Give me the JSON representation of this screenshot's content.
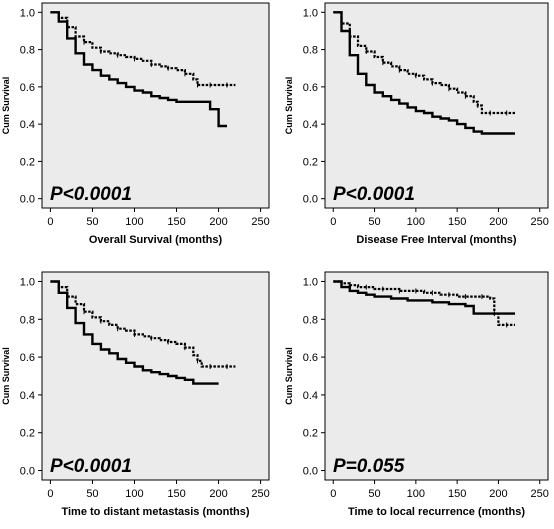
{
  "chart_data": [
    {
      "type": "line",
      "title": "",
      "xlabel": "Overall Survival (months)",
      "ylabel": "Cum Survival",
      "xlim": [
        -10,
        260
      ],
      "ylim": [
        -0.05,
        1.05
      ],
      "x_ticks": [
        0,
        50,
        100,
        150,
        200,
        250
      ],
      "y_ticks": [
        0.0,
        0.2,
        0.4,
        0.6,
        0.8,
        1.0
      ],
      "annotation": "P<0.0001",
      "series": [
        {
          "style": "dashed",
          "x": [
            0,
            10,
            20,
            30,
            40,
            50,
            60,
            70,
            80,
            90,
            100,
            110,
            120,
            130,
            140,
            150,
            160,
            170,
            175,
            180,
            190,
            200,
            210,
            220
          ],
          "y": [
            1.0,
            0.97,
            0.92,
            0.87,
            0.84,
            0.81,
            0.79,
            0.78,
            0.77,
            0.76,
            0.75,
            0.74,
            0.72,
            0.71,
            0.7,
            0.69,
            0.67,
            0.64,
            0.61,
            0.61,
            0.61,
            0.61,
            0.61,
            0.61
          ]
        },
        {
          "style": "solid",
          "x": [
            0,
            10,
            20,
            30,
            40,
            50,
            60,
            70,
            80,
            90,
            100,
            110,
            120,
            130,
            140,
            150,
            160,
            170,
            180,
            190,
            200,
            210
          ],
          "y": [
            1.0,
            0.95,
            0.86,
            0.78,
            0.72,
            0.69,
            0.66,
            0.64,
            0.62,
            0.6,
            0.58,
            0.57,
            0.55,
            0.54,
            0.53,
            0.52,
            0.52,
            0.52,
            0.52,
            0.48,
            0.39,
            0.39
          ]
        }
      ]
    },
    {
      "type": "line",
      "title": "",
      "xlabel": "Disease Free Interval (months)",
      "ylabel": "Cum Survival",
      "xlim": [
        -10,
        260
      ],
      "ylim": [
        -0.05,
        1.05
      ],
      "x_ticks": [
        0,
        50,
        100,
        150,
        200,
        250
      ],
      "y_ticks": [
        0.0,
        0.2,
        0.4,
        0.6,
        0.8,
        1.0
      ],
      "annotation": "P<0.0001",
      "series": [
        {
          "style": "dashed",
          "x": [
            0,
            10,
            20,
            30,
            40,
            50,
            60,
            70,
            80,
            90,
            100,
            110,
            120,
            130,
            140,
            150,
            160,
            170,
            175,
            180,
            190,
            200,
            210,
            220
          ],
          "y": [
            1.0,
            0.94,
            0.87,
            0.82,
            0.79,
            0.76,
            0.73,
            0.71,
            0.69,
            0.67,
            0.66,
            0.64,
            0.62,
            0.61,
            0.59,
            0.57,
            0.55,
            0.52,
            0.5,
            0.46,
            0.46,
            0.46,
            0.46,
            0.46
          ]
        },
        {
          "style": "solid",
          "x": [
            0,
            10,
            20,
            30,
            40,
            50,
            60,
            70,
            80,
            90,
            100,
            110,
            120,
            130,
            140,
            150,
            160,
            170,
            180,
            190,
            200,
            210,
            220
          ],
          "y": [
            1.0,
            0.9,
            0.77,
            0.67,
            0.61,
            0.57,
            0.55,
            0.53,
            0.51,
            0.49,
            0.47,
            0.46,
            0.44,
            0.43,
            0.42,
            0.4,
            0.38,
            0.36,
            0.35,
            0.35,
            0.35,
            0.35,
            0.35
          ]
        }
      ]
    },
    {
      "type": "line",
      "title": "",
      "xlabel": "Time to distant metastasis (months)",
      "ylabel": "Cum Survival",
      "xlim": [
        -10,
        260
      ],
      "ylim": [
        -0.05,
        1.05
      ],
      "x_ticks": [
        0,
        50,
        100,
        150,
        200,
        250
      ],
      "y_ticks": [
        0.0,
        0.2,
        0.4,
        0.6,
        0.8,
        1.0
      ],
      "annotation": "P<0.0001",
      "series": [
        {
          "style": "dashed",
          "x": [
            0,
            10,
            20,
            30,
            40,
            50,
            60,
            70,
            80,
            90,
            100,
            110,
            120,
            130,
            140,
            150,
            160,
            170,
            175,
            180,
            190,
            200,
            210,
            220
          ],
          "y": [
            1.0,
            0.97,
            0.92,
            0.88,
            0.84,
            0.81,
            0.79,
            0.77,
            0.75,
            0.74,
            0.72,
            0.71,
            0.7,
            0.69,
            0.68,
            0.67,
            0.65,
            0.61,
            0.58,
            0.55,
            0.55,
            0.55,
            0.55,
            0.55
          ]
        },
        {
          "style": "solid",
          "x": [
            0,
            10,
            20,
            30,
            40,
            50,
            60,
            70,
            80,
            90,
            100,
            110,
            120,
            130,
            140,
            150,
            160,
            170,
            180,
            190,
            200
          ],
          "y": [
            1.0,
            0.94,
            0.86,
            0.78,
            0.72,
            0.67,
            0.64,
            0.62,
            0.59,
            0.57,
            0.55,
            0.53,
            0.52,
            0.51,
            0.5,
            0.49,
            0.48,
            0.46,
            0.46,
            0.46,
            0.46
          ]
        }
      ]
    },
    {
      "type": "line",
      "title": "",
      "xlabel": "Time to local recurrence (months)",
      "ylabel": "Cum Survival",
      "xlim": [
        -10,
        260
      ],
      "ylim": [
        -0.05,
        1.05
      ],
      "x_ticks": [
        0,
        50,
        100,
        150,
        200,
        250
      ],
      "y_ticks": [
        0.0,
        0.2,
        0.4,
        0.6,
        0.8,
        1.0
      ],
      "annotation": "P=0.055",
      "series": [
        {
          "style": "dashed",
          "x": [
            0,
            10,
            20,
            30,
            40,
            50,
            60,
            70,
            80,
            90,
            100,
            110,
            120,
            130,
            140,
            150,
            160,
            170,
            180,
            190,
            195,
            200,
            210,
            220
          ],
          "y": [
            1.0,
            0.99,
            0.98,
            0.97,
            0.97,
            0.96,
            0.96,
            0.96,
            0.95,
            0.95,
            0.95,
            0.94,
            0.94,
            0.93,
            0.93,
            0.92,
            0.92,
            0.92,
            0.92,
            0.91,
            0.83,
            0.77,
            0.77,
            0.77
          ]
        },
        {
          "style": "solid",
          "x": [
            0,
            10,
            20,
            30,
            40,
            50,
            60,
            70,
            80,
            90,
            100,
            110,
            120,
            130,
            140,
            150,
            160,
            170,
            180,
            190,
            200,
            210,
            220
          ],
          "y": [
            1.0,
            0.97,
            0.95,
            0.94,
            0.93,
            0.92,
            0.92,
            0.91,
            0.91,
            0.9,
            0.9,
            0.9,
            0.89,
            0.89,
            0.88,
            0.88,
            0.87,
            0.83,
            0.83,
            0.83,
            0.83,
            0.83,
            0.83
          ]
        }
      ]
    }
  ]
}
